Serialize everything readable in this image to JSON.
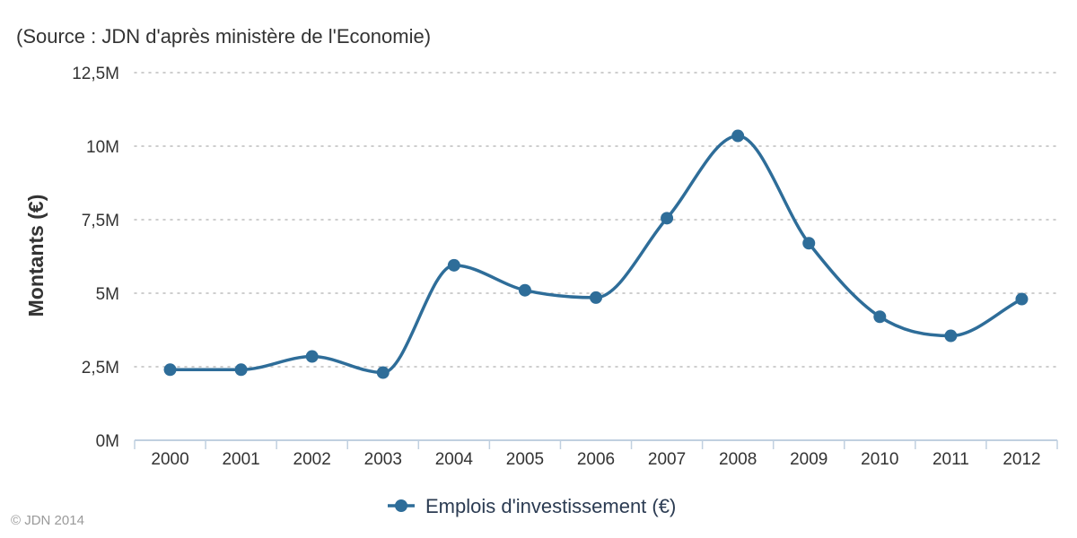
{
  "source_text": "(Source : JDN d'après ministère de l'Economie)",
  "copyright": "© JDN 2014",
  "colors": {
    "series": "#2e6d99",
    "grid": "#bdbdbd",
    "axis": "#c0d0e0"
  },
  "chart_data": {
    "type": "line",
    "smooth": true,
    "ylabel": "Montants (€)",
    "xlabel": "",
    "categories": [
      "2000",
      "2001",
      "2002",
      "2003",
      "2004",
      "2005",
      "2006",
      "2007",
      "2008",
      "2009",
      "2010",
      "2011",
      "2012"
    ],
    "series": [
      {
        "name": "Emplois d'investissement (€)",
        "values": [
          2.4,
          2.4,
          2.85,
          2.3,
          5.95,
          5.1,
          4.85,
          7.55,
          10.35,
          6.7,
          4.2,
          3.55,
          4.8
        ]
      }
    ],
    "yticks": [
      "0M",
      "2,5M",
      "5M",
      "7,5M",
      "10M",
      "12,5M"
    ],
    "ylim": [
      0,
      12.5
    ],
    "grid": true,
    "legend_position": "bottom-center"
  }
}
